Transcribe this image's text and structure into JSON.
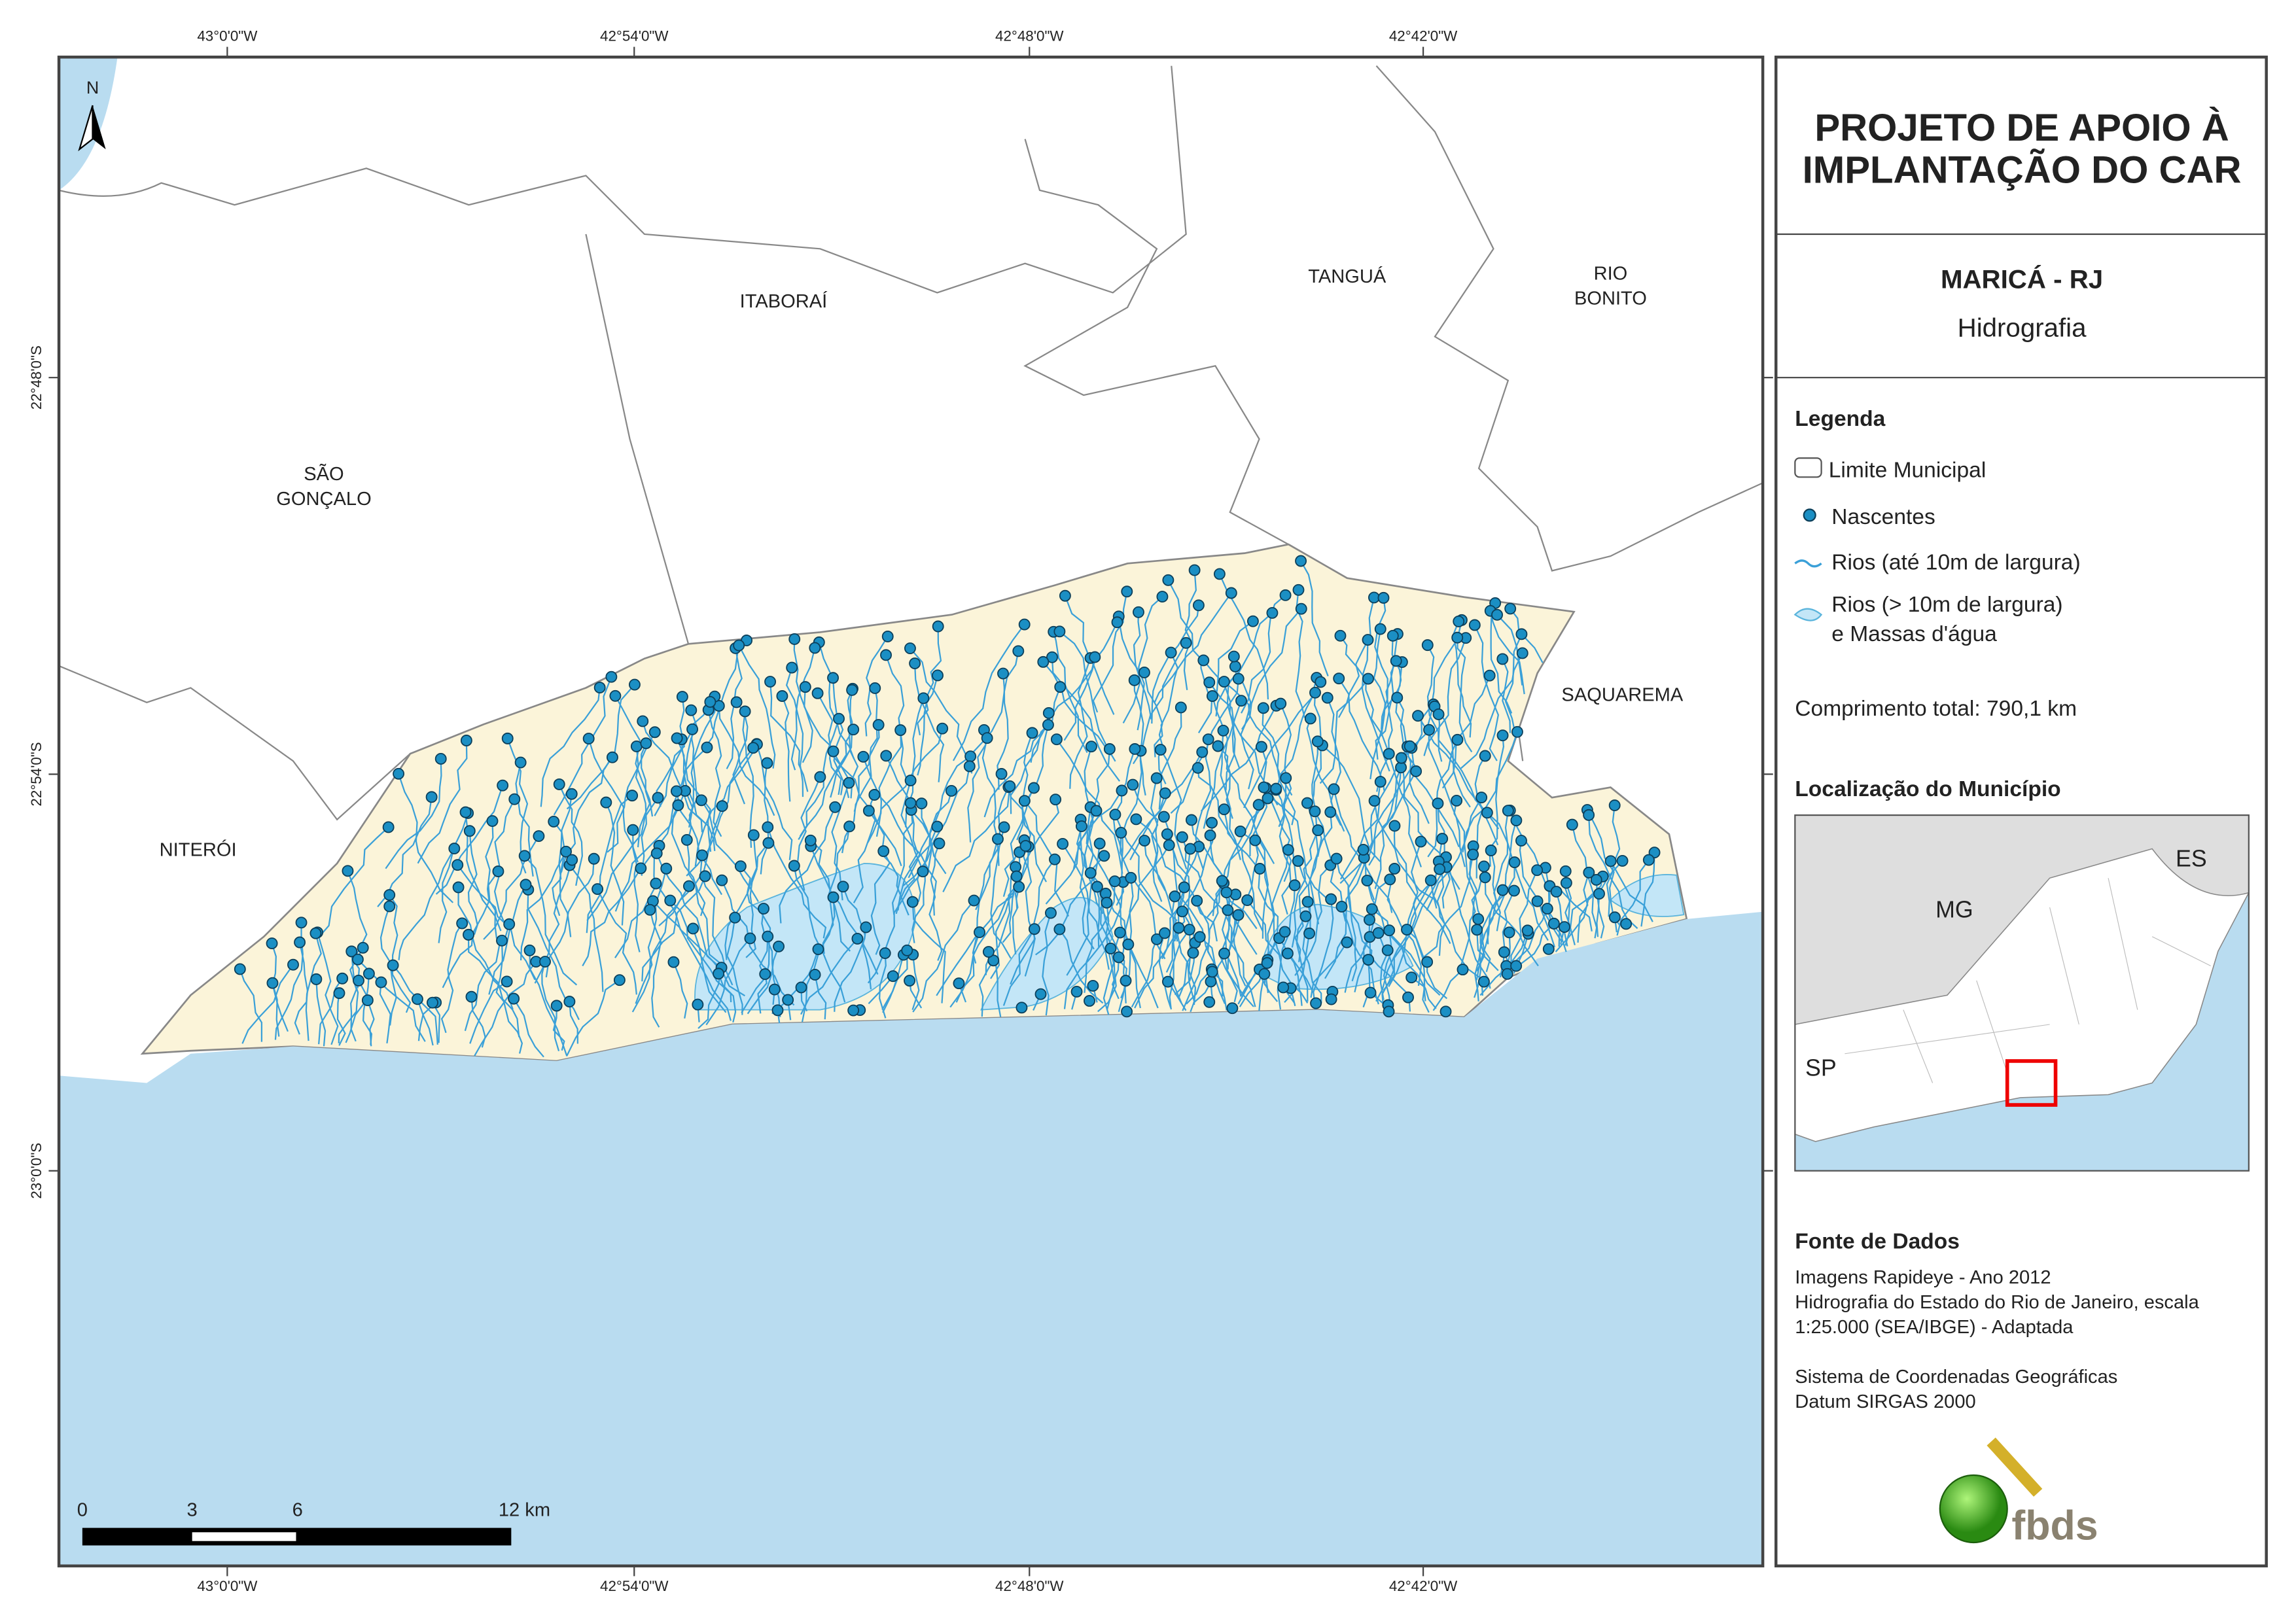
{
  "header": {
    "title_lines": [
      "PROJETO DE APOIO À",
      "IMPLANTAÇÃO DO CAR"
    ],
    "municipality": "MARICÁ - RJ",
    "theme": "Hidrografia"
  },
  "legend": {
    "title": "Legenda",
    "items": [
      "Limite Municipal",
      "Nascentes",
      "Rios (até 10m de largura)",
      "Rios (> 10m de largura)",
      "e Massas d'água"
    ],
    "total_length": "Comprimento total:  790,1 km"
  },
  "location": {
    "title": "Localização do Município",
    "labels": [
      "ES",
      "MG",
      "SP"
    ]
  },
  "sources": {
    "title": "Fonte de Dados",
    "lines": [
      "Imagens Rapideye - Ano 2012",
      "Hidrografia do Estado do Rio de Janeiro, escala",
      "1:25.000 (SEA/IBGE) - Adaptada",
      "Sistema de Coordenadas Geográficas",
      "Datum SIRGAS 2000"
    ]
  },
  "logo": "fbds",
  "map": {
    "north": "N",
    "lon_ticks": [
      "43°0'0\"W",
      "42°54'0\"W",
      "42°48'0\"W",
      "42°42'0\"W"
    ],
    "lat_ticks": [
      "22°48'0\"S",
      "22°54'0\"S",
      "23°0'0\"S"
    ],
    "places": [
      "ITABORAÍ",
      "TANGUÁ",
      "RIO",
      "BONITO",
      "SÃO",
      "GONÇALO",
      "NITERÓI",
      "SAQUAREMA"
    ],
    "scale": [
      "0",
      "3",
      "6",
      "12 km"
    ]
  }
}
